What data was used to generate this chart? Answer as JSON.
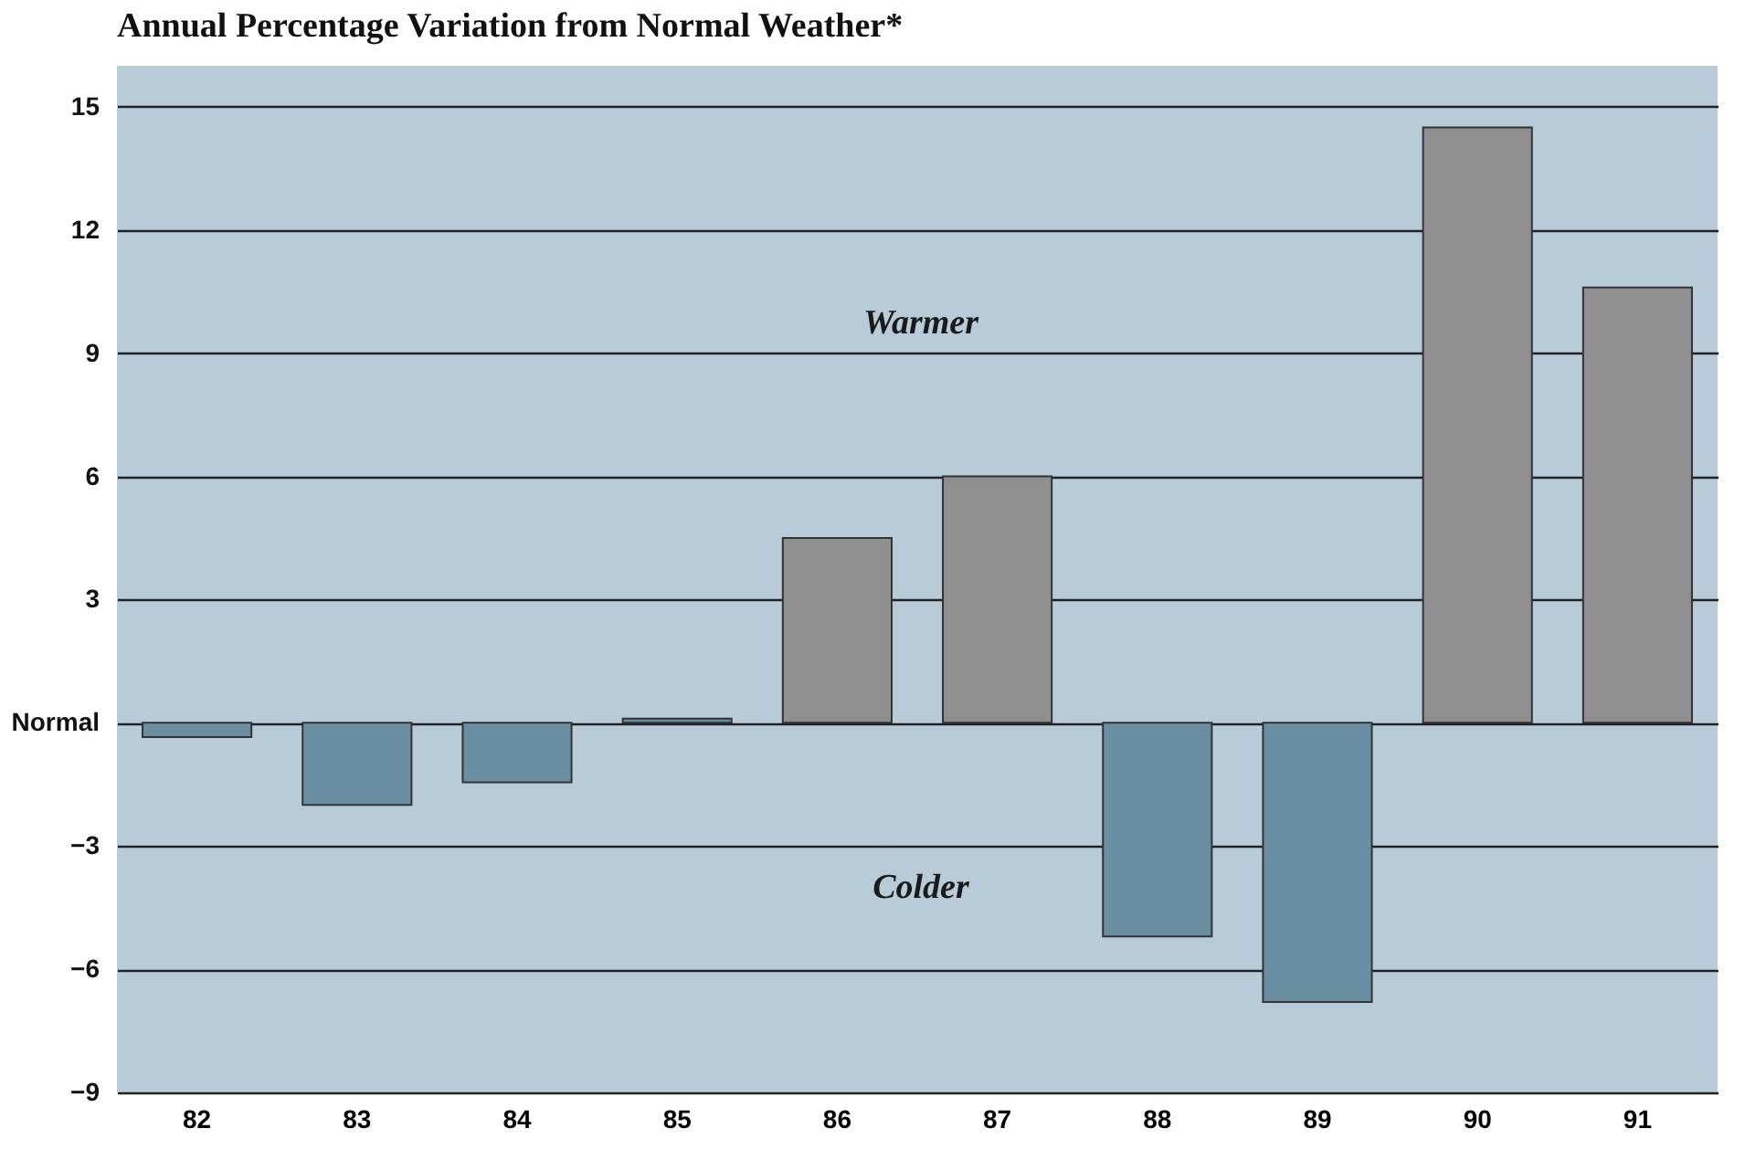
{
  "chart_data": {
    "type": "bar",
    "title": "Annual Percentage Variation from Normal Weather*",
    "categories": [
      "82",
      "83",
      "84",
      "85",
      "86",
      "87",
      "88",
      "89",
      "90",
      "91"
    ],
    "values": [
      -0.35,
      -2.0,
      -1.45,
      0.1,
      4.5,
      6.0,
      -5.2,
      -6.8,
      14.5,
      10.6
    ],
    "colors": [
      "#6a8fa3",
      "#6a8fa3",
      "#6a8fa3",
      "#6a8fa3",
      "#8f8f8f",
      "#8f8f8f",
      "#6a8fa3",
      "#6a8fa3",
      "#8f8f8f",
      "#8f8f8f"
    ],
    "ylim": [
      -9,
      16
    ],
    "yticks": [
      -9,
      -6,
      -3,
      {
        "value": 0,
        "label": "Normal"
      },
      3,
      6,
      9,
      12,
      15
    ],
    "grid": "y",
    "annotations": [
      "Warmer",
      "Colder"
    ]
  }
}
